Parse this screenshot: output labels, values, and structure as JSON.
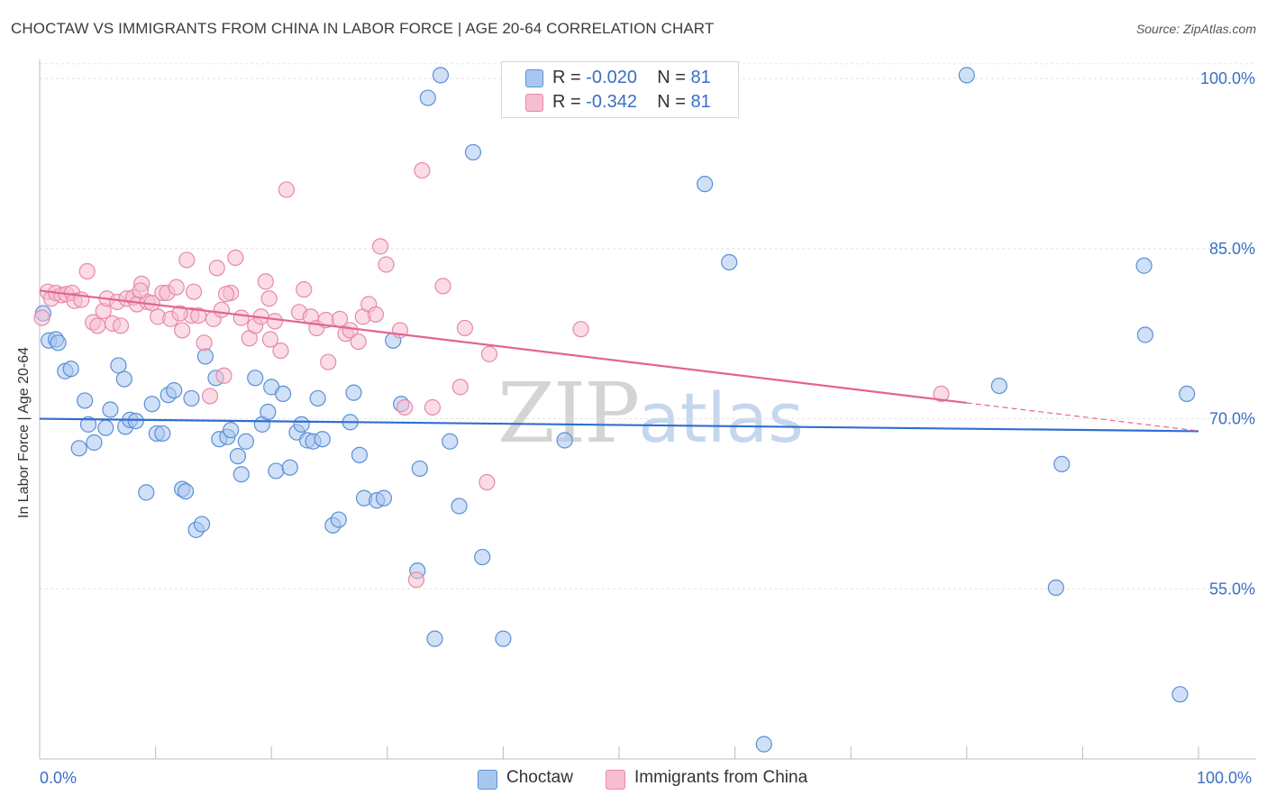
{
  "header": {
    "title": "CHOCTAW VS IMMIGRANTS FROM CHINA IN LABOR FORCE | AGE 20-64 CORRELATION CHART",
    "source": "Source: ZipAtlas.com"
  },
  "watermark": {
    "zip": "ZIP",
    "atlas": "atlas"
  },
  "legend": {
    "rows": [
      {
        "r_label": "R =",
        "r_value": "-0.020",
        "n_label": "N =",
        "n_value": "81",
        "color": "#a9c7ee",
        "border": "#5b8fd6"
      },
      {
        "r_label": "R =",
        "r_value": "-0.342",
        "n_label": "N =",
        "n_value": "81",
        "color": "#f7bdd0",
        "border": "#e58aa8"
      }
    ]
  },
  "bottom_legend": {
    "items": [
      {
        "label": "Choctaw",
        "color": "#a9c7ee",
        "border": "#5b8fd6"
      },
      {
        "label": "Immigrants from China",
        "color": "#f7bdd0",
        "border": "#e58aa8"
      }
    ]
  },
  "chart_data": {
    "type": "scatter",
    "title": "CHOCTAW VS IMMIGRANTS FROM CHINA IN LABOR FORCE | AGE 20-64 CORRELATION CHART",
    "xlabel": "",
    "ylabel": "In Labor Force | Age 20-64",
    "xlim": [
      0,
      100
    ],
    "ylim": [
      40,
      102
    ],
    "x_tick_labels": [
      "0.0%",
      "100.0%"
    ],
    "y_ticks": [
      55,
      70,
      85,
      100
    ],
    "y_tick_labels": [
      "55.0%",
      "70.0%",
      "85.0%",
      "100.0%"
    ],
    "grid": true,
    "series": [
      {
        "name": "Choctaw",
        "color": "#5b8fd6",
        "fill": "#a9c7ee",
        "trend": {
          "x": [
            0,
            100
          ],
          "y": [
            70.0,
            68.9
          ]
        },
        "points": [
          [
            0.3,
            79.3
          ],
          [
            0.8,
            76.9
          ],
          [
            1.4,
            77.0
          ],
          [
            1.6,
            76.7
          ],
          [
            2.2,
            74.2
          ],
          [
            2.7,
            74.4
          ],
          [
            3.4,
            67.4
          ],
          [
            3.9,
            71.6
          ],
          [
            4.2,
            69.5
          ],
          [
            4.7,
            67.9
          ],
          [
            5.7,
            69.2
          ],
          [
            6.1,
            70.8
          ],
          [
            6.8,
            74.7
          ],
          [
            7.3,
            73.5
          ],
          [
            7.4,
            69.3
          ],
          [
            7.8,
            69.9
          ],
          [
            8.3,
            69.8
          ],
          [
            9.2,
            63.5
          ],
          [
            9.7,
            71.3
          ],
          [
            10.1,
            68.7
          ],
          [
            10.6,
            68.7
          ],
          [
            11.1,
            72.1
          ],
          [
            11.6,
            72.5
          ],
          [
            12.3,
            63.8
          ],
          [
            12.6,
            63.6
          ],
          [
            13.1,
            71.8
          ],
          [
            13.5,
            60.2
          ],
          [
            14.0,
            60.7
          ],
          [
            14.3,
            75.5
          ],
          [
            15.2,
            73.6
          ],
          [
            15.5,
            68.2
          ],
          [
            16.2,
            68.4
          ],
          [
            16.5,
            69.0
          ],
          [
            17.1,
            66.7
          ],
          [
            17.4,
            65.1
          ],
          [
            17.8,
            68.0
          ],
          [
            18.6,
            73.6
          ],
          [
            19.2,
            69.5
          ],
          [
            19.7,
            70.6
          ],
          [
            20.0,
            72.8
          ],
          [
            20.4,
            65.4
          ],
          [
            21.0,
            72.2
          ],
          [
            21.6,
            65.7
          ],
          [
            22.2,
            68.8
          ],
          [
            22.6,
            69.5
          ],
          [
            23.1,
            68.1
          ],
          [
            23.6,
            68.0
          ],
          [
            24.0,
            71.8
          ],
          [
            24.4,
            68.2
          ],
          [
            25.3,
            60.6
          ],
          [
            25.8,
            61.1
          ],
          [
            26.8,
            69.7
          ],
          [
            27.1,
            72.3
          ],
          [
            27.6,
            66.8
          ],
          [
            28.0,
            63.0
          ],
          [
            29.1,
            62.8
          ],
          [
            29.7,
            63.0
          ],
          [
            30.5,
            76.9
          ],
          [
            31.2,
            71.3
          ],
          [
            32.6,
            56.6
          ],
          [
            32.8,
            65.6
          ],
          [
            33.5,
            98.3
          ],
          [
            34.1,
            50.6
          ],
          [
            34.6,
            100.3
          ],
          [
            35.4,
            68.0
          ],
          [
            36.2,
            62.3
          ],
          [
            37.4,
            93.5
          ],
          [
            38.2,
            57.8
          ],
          [
            40.0,
            50.6
          ],
          [
            45.3,
            68.1
          ],
          [
            57.4,
            90.7
          ],
          [
            59.5,
            83.8
          ],
          [
            62.5,
            41.3
          ],
          [
            80.0,
            100.3
          ],
          [
            82.8,
            72.9
          ],
          [
            87.7,
            55.1
          ],
          [
            88.2,
            66.0
          ],
          [
            95.4,
            77.4
          ],
          [
            98.4,
            45.7
          ],
          [
            95.3,
            83.5
          ],
          [
            99.0,
            72.2
          ]
        ]
      },
      {
        "name": "Immigrants from China",
        "color": "#e58aa8",
        "fill": "#f7bdd0",
        "trend": {
          "x": [
            0,
            80
          ],
          "y": [
            81.3,
            71.4
          ]
        },
        "points": [
          [
            0.2,
            78.9
          ],
          [
            0.7,
            81.2
          ],
          [
            1.0,
            80.6
          ],
          [
            1.4,
            81.1
          ],
          [
            1.9,
            80.9
          ],
          [
            2.3,
            81.0
          ],
          [
            2.8,
            81.1
          ],
          [
            3.0,
            80.4
          ],
          [
            3.6,
            80.5
          ],
          [
            4.1,
            83.0
          ],
          [
            4.6,
            78.5
          ],
          [
            5.0,
            78.2
          ],
          [
            5.5,
            79.5
          ],
          [
            5.8,
            80.6
          ],
          [
            6.3,
            78.4
          ],
          [
            6.7,
            80.3
          ],
          [
            7.0,
            78.2
          ],
          [
            7.5,
            80.6
          ],
          [
            8.1,
            80.7
          ],
          [
            8.4,
            80.1
          ],
          [
            8.8,
            81.9
          ],
          [
            9.3,
            80.3
          ],
          [
            9.7,
            80.2
          ],
          [
            10.2,
            79.0
          ],
          [
            10.6,
            81.1
          ],
          [
            11.0,
            81.1
          ],
          [
            11.3,
            78.8
          ],
          [
            11.8,
            81.6
          ],
          [
            12.3,
            77.8
          ],
          [
            12.7,
            84.0
          ],
          [
            13.1,
            79.1
          ],
          [
            13.3,
            81.2
          ],
          [
            13.7,
            79.1
          ],
          [
            14.2,
            76.7
          ],
          [
            14.7,
            72.0
          ],
          [
            15.0,
            78.8
          ],
          [
            15.3,
            83.3
          ],
          [
            15.7,
            79.6
          ],
          [
            15.9,
            73.8
          ],
          [
            16.5,
            81.1
          ],
          [
            16.9,
            84.2
          ],
          [
            17.4,
            78.9
          ],
          [
            18.1,
            77.1
          ],
          [
            18.6,
            78.2
          ],
          [
            19.1,
            79.0
          ],
          [
            19.5,
            82.1
          ],
          [
            19.8,
            80.6
          ],
          [
            20.3,
            78.6
          ],
          [
            20.8,
            76.0
          ],
          [
            21.3,
            90.2
          ],
          [
            22.4,
            79.4
          ],
          [
            22.8,
            81.4
          ],
          [
            23.4,
            79.0
          ],
          [
            23.9,
            78.0
          ],
          [
            24.7,
            78.7
          ],
          [
            24.9,
            75.0
          ],
          [
            25.9,
            78.8
          ],
          [
            26.4,
            77.5
          ],
          [
            26.8,
            77.8
          ],
          [
            27.5,
            76.8
          ],
          [
            27.9,
            79.0
          ],
          [
            28.4,
            80.1
          ],
          [
            29.0,
            79.2
          ],
          [
            29.4,
            85.2
          ],
          [
            29.9,
            83.6
          ],
          [
            31.1,
            77.8
          ],
          [
            31.5,
            71.0
          ],
          [
            32.5,
            55.8
          ],
          [
            33.0,
            91.9
          ],
          [
            33.9,
            71.0
          ],
          [
            34.8,
            81.7
          ],
          [
            36.3,
            72.8
          ],
          [
            36.7,
            78.0
          ],
          [
            38.8,
            75.7
          ],
          [
            38.6,
            64.4
          ],
          [
            46.7,
            77.9
          ],
          [
            77.8,
            72.2
          ],
          [
            8.7,
            81.3
          ],
          [
            16.1,
            81.0
          ],
          [
            12.1,
            79.3
          ],
          [
            19.9,
            77.0
          ]
        ]
      }
    ]
  }
}
